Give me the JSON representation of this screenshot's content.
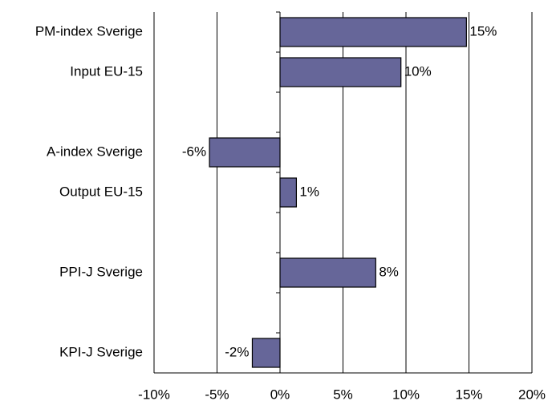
{
  "chart_data": {
    "type": "hbar",
    "categories": [
      "PM-index Sverige",
      "Input EU-15",
      null,
      "A-index Sverige",
      "Output EU-15",
      null,
      "PPI-J Sverige",
      null,
      "KPI-J Sverige"
    ],
    "values": [
      14.8,
      9.6,
      null,
      -5.6,
      1.3,
      null,
      7.6,
      null,
      -2.2
    ],
    "value_labels": [
      "15%",
      "10%",
      null,
      "-6%",
      "1%",
      null,
      "8%",
      null,
      "-2%"
    ],
    "color": "#666699",
    "xlim": [
      -10,
      20
    ],
    "xticks": [
      {
        "value": -10,
        "label": "-10%"
      },
      {
        "value": -5,
        "label": "-5%"
      },
      {
        "value": 0,
        "label": "0%"
      },
      {
        "value": 5,
        "label": "5%"
      },
      {
        "value": 10,
        "label": "10%"
      },
      {
        "value": 15,
        "label": "15%"
      },
      {
        "value": 20,
        "label": "20%"
      }
    ],
    "grid": true
  }
}
